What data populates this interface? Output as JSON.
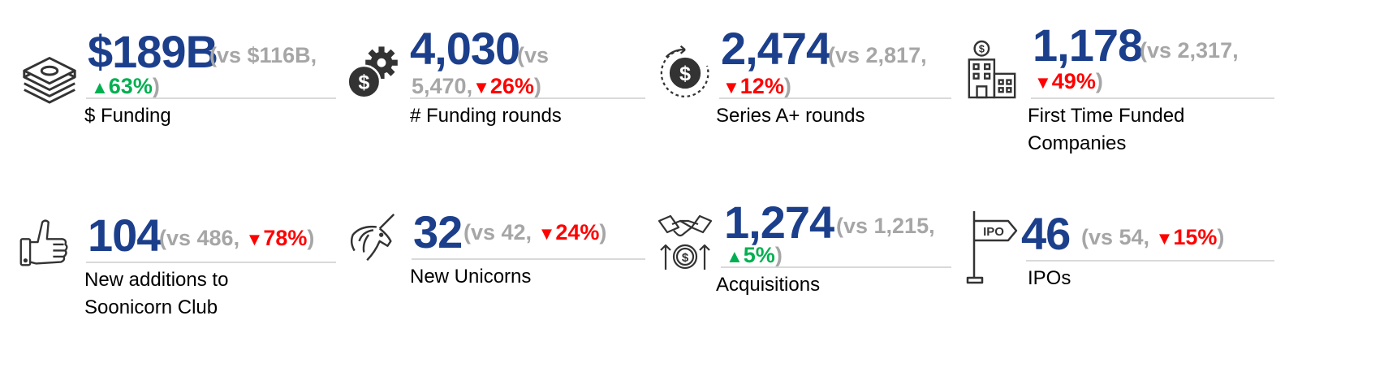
{
  "metrics": [
    {
      "value": "$189B",
      "cmp_pre": "(vs $116B,",
      "arrow": "▲",
      "pct": "63%",
      "cmp_post": ")",
      "dir": "up",
      "label_lines": [
        "$ Funding"
      ],
      "icon": "money-stack-icon"
    },
    {
      "value": "4,030",
      "cmp_pre": "(vs",
      "cmp_pre2": "5,470,",
      "arrow": "▼",
      "pct": "26%",
      "cmp_post": ")",
      "dir": "down",
      "label_lines": [
        "# Funding rounds"
      ],
      "icon": "gear-dollar-icon"
    },
    {
      "value": "2,474",
      "cmp_pre": "(vs 2,817,",
      "arrow": "▼",
      "pct": "12%",
      "cmp_post": ")",
      "dir": "down",
      "label_lines": [
        "Series A+ rounds"
      ],
      "icon": "dollar-cycle-icon"
    },
    {
      "value": "1,178",
      "cmp_pre": "(vs 2,317,",
      "arrow": "▼",
      "pct": "49%",
      "cmp_post": ")",
      "dir": "down",
      "label_lines": [
        "First Time Funded",
        "Companies"
      ],
      "icon": "building-dollar-icon"
    },
    {
      "value": "104",
      "cmp_pre": "(vs 486,",
      "arrow": "▼",
      "pct": "78%",
      "cmp_post": ")",
      "dir": "down",
      "label_lines": [
        "New additions to",
        "Soonicorn Club"
      ],
      "icon": "thumbs-up-icon"
    },
    {
      "value": "32",
      "cmp_pre": "(vs 42,",
      "arrow": "▼",
      "pct": "24%",
      "cmp_post": ")",
      "dir": "down",
      "label_lines": [
        "New Unicorns"
      ],
      "icon": "unicorn-icon"
    },
    {
      "value": "1,274",
      "cmp_pre": "(vs 1,215,",
      "arrow": "▲",
      "pct": "5%",
      "cmp_post": ")",
      "dir": "up",
      "label_lines": [
        "Acquisitions"
      ],
      "icon": "handshake-dollar-icon"
    },
    {
      "value": "46",
      "cmp_pre": "(vs 54,",
      "arrow": "▼",
      "pct": "15%",
      "cmp_post": ")",
      "dir": "down",
      "label_lines": [
        "IPOs"
      ],
      "icon": "ipo-sign-icon"
    }
  ],
  "ipo_sign_text": "IPO",
  "colors": {
    "value": "#1c3f8c",
    "compare": "#a6a6a6",
    "up": "#00b050",
    "down": "#ff0000",
    "rule": "#d9d9d9"
  }
}
